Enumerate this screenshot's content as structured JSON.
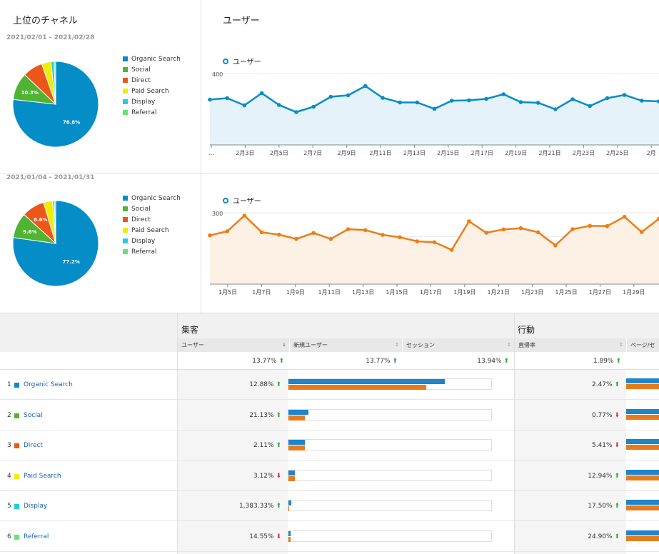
{
  "channels_panel": {
    "title": "上位のチャネル",
    "range_current": "2021/02/01 - 2021/02/28",
    "range_previous": "2021/01/04 - 2021/01/31",
    "legend": [
      {
        "label": "Organic Search",
        "color": "#058dc7"
      },
      {
        "label": "Social",
        "color": "#50b432"
      },
      {
        "label": "Direct",
        "color": "#ed561b"
      },
      {
        "label": "Paid Search",
        "color": "#edef00"
      },
      {
        "label": "Display",
        "color": "#24cbe5"
      },
      {
        "label": "Referral",
        "color": "#64e572"
      }
    ],
    "pie_current_labels": {
      "a": "76.8%",
      "b": "10.3%"
    },
    "pie_previous_labels": {
      "a": "77.2%",
      "b": "9.6%",
      "c": "8.6%"
    }
  },
  "users_panel": {
    "title": "ユーザー",
    "series_label": "ユーザー"
  },
  "chart_data": [
    {
      "type": "pie",
      "categories": [
        "Organic Search",
        "Social",
        "Direct",
        "Paid Search",
        "Display",
        "Referral"
      ],
      "values": [
        76.8,
        10.3,
        7.6,
        3.5,
        1.2,
        0.6
      ]
    },
    {
      "type": "line",
      "x": [
        "2月1日",
        "2月2日",
        "2月3日",
        "2月4日",
        "2月5日",
        "2月6日",
        "2月7日",
        "2月8日",
        "2月9日",
        "2月10日",
        "2月11日",
        "2月12日",
        "2月13日",
        "2月14日",
        "2月15日",
        "2月16日",
        "2月17日",
        "2月18日",
        "2月19日",
        "2月20日",
        "2月21日",
        "2月22日",
        "2月23日",
        "2月24日",
        "2月25日",
        "2月26日",
        "2月27日"
      ],
      "series": [
        {
          "name": "ユーザー",
          "color": "#058dc7",
          "values": [
            254,
            262,
            222,
            290,
            224,
            184,
            214,
            270,
            278,
            330,
            264,
            238,
            238,
            202,
            248,
            250,
            258,
            284,
            240,
            236,
            200,
            256,
            218,
            262,
            280,
            248,
            244
          ]
        }
      ],
      "xticks": [
        "…",
        "2月3日",
        "2月5日",
        "2月7日",
        "2月9日",
        "2月11日",
        "2月13日",
        "2月15日",
        "2月17日",
        "2月19日",
        "2月21日",
        "2月23日",
        "2月25日",
        "2月"
      ],
      "yticks": [
        "400",
        "200"
      ],
      "ylim": [
        0,
        400
      ]
    },
    {
      "type": "pie",
      "categories": [
        "Organic Search",
        "Social",
        "Direct",
        "Paid Search",
        "Display",
        "Referral"
      ],
      "values": [
        77.2,
        9.6,
        8.6,
        3.4,
        0.7,
        0.5
      ]
    },
    {
      "type": "line",
      "x": [
        "1月4日",
        "1月5日",
        "1月6日",
        "1月7日",
        "1月8日",
        "1月9日",
        "1月10日",
        "1月11日",
        "1月12日",
        "1月13日",
        "1月14日",
        "1月15日",
        "1月16日",
        "1月17日",
        "1月18日",
        "1月19日",
        "1月20日",
        "1月21日",
        "1月22日",
        "1月23日",
        "1月24日",
        "1月25日",
        "1月26日",
        "1月27日",
        "1月28日",
        "1月29日",
        "1月30日"
      ],
      "series": [
        {
          "name": "ユーザー",
          "color": "#ed7d15",
          "values": [
            205,
            222,
            288,
            218,
            208,
            190,
            215,
            190,
            231,
            227,
            207,
            197,
            180,
            176,
            144,
            264,
            216,
            230,
            235,
            218,
            163,
            231,
            245,
            244,
            283,
            219,
            275
          ]
        }
      ],
      "xticks": [
        "1月5日",
        "1月7日",
        "1月9日",
        "1月11日",
        "1月13日",
        "1月15日",
        "1月17日",
        "1月19日",
        "1月21日",
        "1月23日",
        "1月25日",
        "1月27日",
        "1月29日"
      ],
      "yticks": [
        "300",
        "200",
        "100"
      ],
      "ylim": [
        0,
        300
      ]
    }
  ],
  "table": {
    "group_acq": "集客",
    "group_beh": "行動",
    "col_users": "ユーザー",
    "col_new_users": "新規ユーザー",
    "col_sessions": "セッション",
    "col_bounce": "直帰率",
    "col_pages": "ページ/セッ",
    "totals": {
      "users": "13.77%",
      "new_users": "13.77%",
      "sessions": "13.94%",
      "bounce": "1.89%"
    },
    "rows": [
      {
        "rank": "1",
        "name": "Organic Search",
        "color": "#058dc7",
        "users": "12.88%",
        "users_dir": "up",
        "bar_cur": 0.77,
        "bar_prev": 0.68,
        "bounce": "2.47%",
        "bounce_dir": "up"
      },
      {
        "rank": "2",
        "name": "Social",
        "color": "#50b432",
        "users": "21.13%",
        "users_dir": "up",
        "bar_cur": 0.1,
        "bar_prev": 0.08,
        "bounce": "0.77%",
        "bounce_dir": "down"
      },
      {
        "rank": "3",
        "name": "Direct",
        "color": "#ed561b",
        "users": "2.11%",
        "users_dir": "up",
        "bar_cur": 0.08,
        "bar_prev": 0.08,
        "bounce": "5.41%",
        "bounce_dir": "down"
      },
      {
        "rank": "4",
        "name": "Paid Search",
        "color": "#edef00",
        "users": "3.12%",
        "users_dir": "down",
        "bar_cur": 0.03,
        "bar_prev": 0.03,
        "bounce": "12.94%",
        "bounce_dir": "up"
      },
      {
        "rank": "5",
        "name": "Display",
        "color": "#24cbe5",
        "users": "1,383.33%",
        "users_dir": "up",
        "bar_cur": 0.015,
        "bar_prev": 0.005,
        "bounce": "17.50%",
        "bounce_dir": "up"
      },
      {
        "rank": "6",
        "name": "Referral",
        "color": "#64e572",
        "users": "14.55%",
        "users_dir": "down",
        "bar_cur": 0.01,
        "bar_prev": 0.01,
        "bounce": "24.90%",
        "bounce_dir": "up"
      }
    ]
  }
}
